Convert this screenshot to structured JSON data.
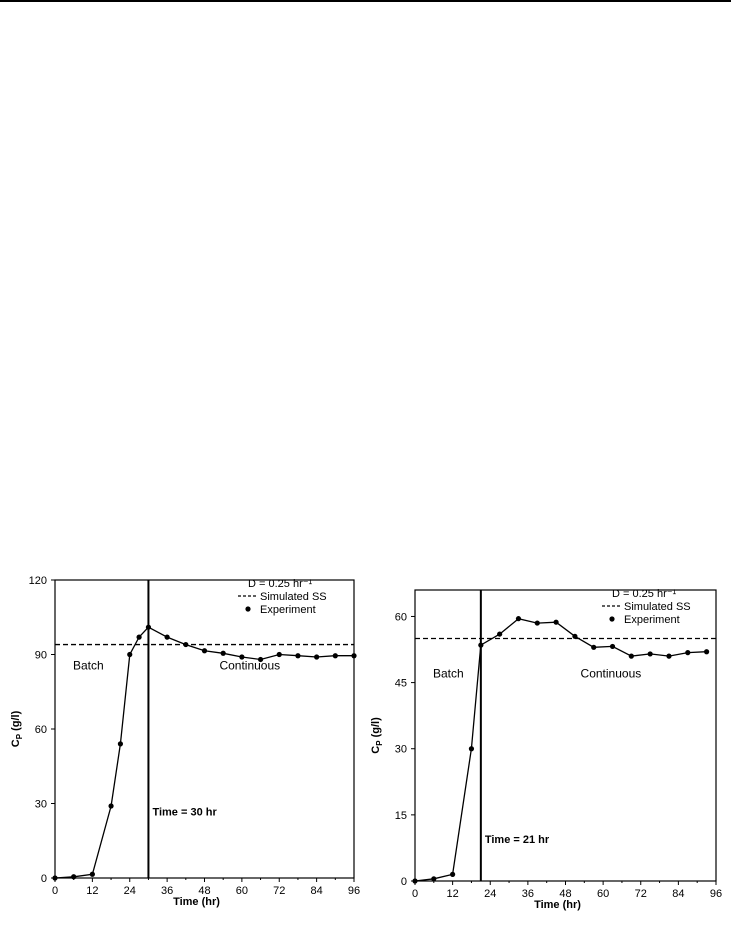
{
  "chart_data": [
    {
      "type": "line",
      "xlabel": "Time (hr)",
      "ylabel": "C",
      "ylabel_sub": "P",
      "ylabel_unit": "(g/l)",
      "xlim": [
        0,
        96
      ],
      "ylim": [
        0,
        120
      ],
      "xticks": [
        "0",
        "12",
        "24",
        "36",
        "48",
        "60",
        "72",
        "84",
        "96"
      ],
      "yticks": [
        "0",
        "30",
        "60",
        "90",
        "120"
      ],
      "grid": false,
      "legend": {
        "placement": "top-right",
        "title": "D = 0.25 hr⁻¹",
        "entries": [
          "Simulated SS",
          "Experiment"
        ]
      },
      "annotations": {
        "batch_label": "Batch",
        "continuous_label": "Continuous",
        "switch_label": "Time = 30 hr",
        "switch_time": 30
      },
      "series": [
        {
          "name": "Simulated SS",
          "style": "dashed",
          "x": [
            0,
            96
          ],
          "y": [
            94,
            94
          ]
        },
        {
          "name": "Experiment",
          "style": "line-markers",
          "x": [
            0,
            6,
            12,
            18,
            21,
            24,
            27,
            30,
            36,
            42,
            48,
            54,
            60,
            66,
            72,
            78,
            84,
            90,
            96
          ],
          "y": [
            0,
            0.5,
            1.5,
            29,
            54,
            90,
            97,
            101,
            97,
            94,
            91.5,
            90.5,
            89,
            88,
            90,
            89.5,
            89,
            89.5,
            89.5
          ]
        }
      ]
    },
    {
      "type": "line",
      "xlabel": "Time (hr)",
      "ylabel": "C",
      "ylabel_sub": "P",
      "ylabel_unit": "(g/l)",
      "xlim": [
        0,
        96
      ],
      "ylim": [
        0,
        66
      ],
      "xticks": [
        "0",
        "12",
        "24",
        "36",
        "48",
        "60",
        "72",
        "84",
        "96"
      ],
      "yticks": [
        "0",
        "15",
        "30",
        "45",
        "60"
      ],
      "grid": false,
      "legend": {
        "placement": "top-right",
        "title": "D = 0.25 hr⁻¹",
        "entries": [
          "Simulated SS",
          "Experiment"
        ]
      },
      "annotations": {
        "batch_label": "Batch",
        "continuous_label": "Continuous",
        "switch_label": "Time = 21 hr",
        "switch_time": 21
      },
      "series": [
        {
          "name": "Simulated SS",
          "style": "dashed",
          "x": [
            0,
            96
          ],
          "y": [
            55,
            55
          ]
        },
        {
          "name": "Experiment",
          "style": "line-markers",
          "x": [
            0,
            6,
            12,
            18,
            21,
            27,
            33,
            39,
            45,
            51,
            57,
            63,
            69,
            75,
            81,
            87,
            93
          ],
          "y": [
            0,
            0.5,
            1.5,
            30,
            53.5,
            56,
            59.5,
            58.5,
            58.7,
            55.5,
            53,
            53.2,
            51,
            51.5,
            51,
            51.8,
            52
          ]
        }
      ]
    }
  ]
}
